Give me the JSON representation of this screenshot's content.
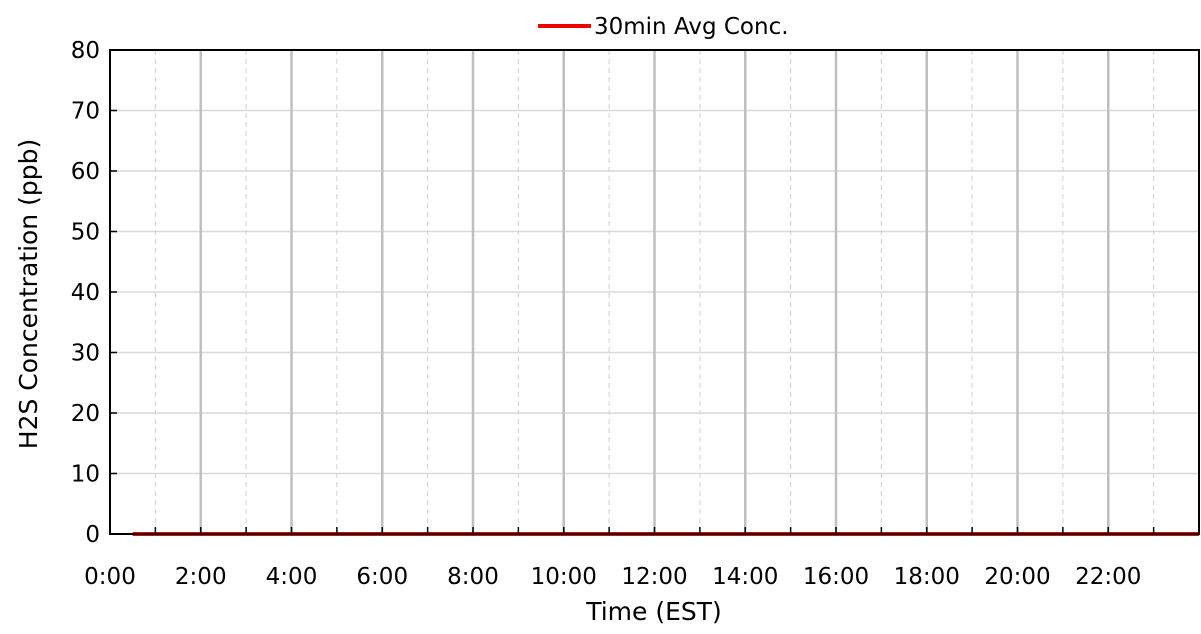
{
  "chart_data": {
    "type": "line",
    "title": "",
    "xlabel": "Time (EST)",
    "ylabel": "H2S Concentration (ppb)",
    "xlim": [
      0,
      24
    ],
    "ylim": [
      0,
      80
    ],
    "x_ticks_major": [
      0,
      2,
      4,
      6,
      8,
      10,
      12,
      14,
      16,
      18,
      20,
      22
    ],
    "x_tick_labels": [
      "0:00",
      "2:00",
      "4:00",
      "6:00",
      "8:00",
      "10:00",
      "12:00",
      "14:00",
      "16:00",
      "18:00",
      "20:00",
      "22:00"
    ],
    "y_ticks": [
      0,
      10,
      20,
      30,
      40,
      50,
      60,
      70,
      80
    ],
    "y_tick_labels": [
      "0",
      "10",
      "20",
      "30",
      "40",
      "50",
      "60",
      "70",
      "80"
    ],
    "grid": true,
    "legend_position": "top-center",
    "series": [
      {
        "name": "30min Avg Conc.",
        "color": "#ee0000",
        "x": [
          0.5,
          1.0,
          1.5,
          2.0,
          2.5,
          3.0,
          3.5,
          4.0,
          4.5,
          5.0,
          5.5,
          6.0,
          6.5,
          7.0,
          7.5,
          8.0,
          8.5,
          9.0,
          9.5,
          10.0,
          10.5,
          11.0,
          11.5,
          12.0,
          12.5,
          13.0,
          13.5,
          14.0,
          14.5,
          15.0,
          15.5,
          16.0,
          16.5,
          17.0,
          17.5,
          18.0,
          18.5,
          19.0,
          19.5,
          20.0,
          20.5,
          21.0,
          21.5,
          22.0,
          22.5,
          23.0,
          23.5,
          24.0
        ],
        "values": [
          0,
          0,
          0,
          0,
          0,
          0,
          0,
          0,
          0,
          0,
          0,
          0,
          0,
          0,
          0,
          0,
          0,
          0,
          0,
          0,
          0,
          0,
          0,
          0,
          0,
          0,
          0,
          0,
          0,
          0,
          0,
          0,
          0,
          0,
          0,
          0,
          0,
          0,
          0,
          0,
          0,
          0,
          0,
          0,
          0,
          0,
          0,
          0
        ]
      }
    ]
  }
}
